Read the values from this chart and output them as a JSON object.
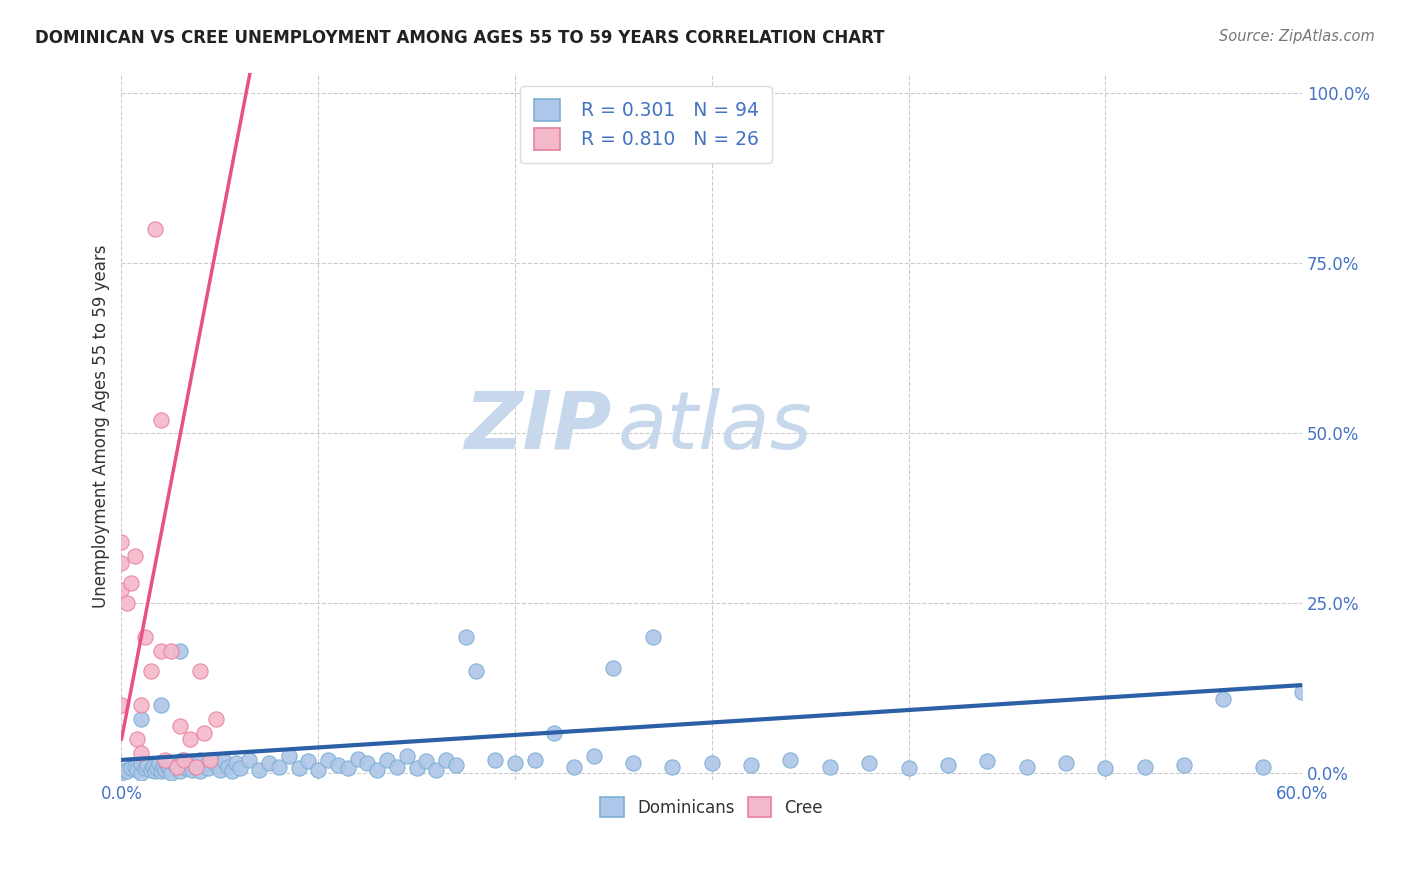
{
  "title": "DOMINICAN VS CREE UNEMPLOYMENT AMONG AGES 55 TO 59 YEARS CORRELATION CHART",
  "source": "Source: ZipAtlas.com",
  "ylabel": "Unemployment Among Ages 55 to 59 years",
  "ytick_labels": [
    "0.0%",
    "25.0%",
    "50.0%",
    "75.0%",
    "100.0%"
  ],
  "ytick_values": [
    0.0,
    0.25,
    0.5,
    0.75,
    1.0
  ],
  "xlim": [
    0.0,
    0.6
  ],
  "ylim": [
    -0.01,
    1.03
  ],
  "dominican_color": "#aec6e8",
  "dominican_edge_color": "#7bafd4",
  "cree_color": "#f4b8cb",
  "cree_edge_color": "#e8829e",
  "trend_dominican_color": "#2b5fa6",
  "trend_cree_color": "#e8508a",
  "legend_r_dominican": "R = 0.301",
  "legend_n_dominican": "N = 94",
  "legend_r_cree": "R = 0.810",
  "legend_n_cree": "N = 26",
  "watermark_zip": "ZIP",
  "watermark_atlas": "atlas",
  "watermark_color": "#c8d8ec",
  "dom_x": [
    0.0,
    0.002,
    0.003,
    0.005,
    0.007,
    0.008,
    0.01,
    0.01,
    0.012,
    0.013,
    0.015,
    0.016,
    0.017,
    0.018,
    0.019,
    0.02,
    0.021,
    0.022,
    0.023,
    0.024,
    0.025,
    0.026,
    0.028,
    0.03,
    0.031,
    0.033,
    0.035,
    0.036,
    0.038,
    0.04,
    0.042,
    0.044,
    0.046,
    0.048,
    0.05,
    0.052,
    0.054,
    0.056,
    0.058,
    0.06,
    0.065,
    0.07,
    0.075,
    0.08,
    0.085,
    0.09,
    0.095,
    0.1,
    0.105,
    0.11,
    0.115,
    0.12,
    0.125,
    0.13,
    0.135,
    0.14,
    0.145,
    0.15,
    0.155,
    0.16,
    0.165,
    0.17,
    0.175,
    0.18,
    0.19,
    0.2,
    0.21,
    0.22,
    0.23,
    0.24,
    0.25,
    0.26,
    0.27,
    0.28,
    0.3,
    0.32,
    0.34,
    0.36,
    0.38,
    0.4,
    0.42,
    0.44,
    0.46,
    0.48,
    0.5,
    0.52,
    0.54,
    0.56,
    0.58,
    0.6,
    0.01,
    0.02,
    0.03,
    0.04
  ],
  "dom_y": [
    0.0,
    0.005,
    0.003,
    0.008,
    0.01,
    0.005,
    0.0,
    0.015,
    0.008,
    0.012,
    0.005,
    0.01,
    0.003,
    0.008,
    0.015,
    0.003,
    0.01,
    0.005,
    0.012,
    0.008,
    0.0,
    0.015,
    0.01,
    0.003,
    0.02,
    0.008,
    0.015,
    0.005,
    0.01,
    0.003,
    0.015,
    0.008,
    0.02,
    0.012,
    0.005,
    0.018,
    0.01,
    0.003,
    0.015,
    0.008,
    0.02,
    0.005,
    0.015,
    0.01,
    0.025,
    0.008,
    0.018,
    0.005,
    0.02,
    0.012,
    0.008,
    0.022,
    0.015,
    0.005,
    0.02,
    0.01,
    0.025,
    0.008,
    0.018,
    0.005,
    0.02,
    0.012,
    0.2,
    0.15,
    0.02,
    0.015,
    0.02,
    0.06,
    0.01,
    0.025,
    0.155,
    0.015,
    0.2,
    0.01,
    0.015,
    0.012,
    0.02,
    0.01,
    0.015,
    0.008,
    0.012,
    0.018,
    0.01,
    0.015,
    0.008,
    0.01,
    0.012,
    0.11,
    0.01,
    0.12,
    0.08,
    0.1,
    0.18,
    0.02
  ],
  "cree_x": [
    0.0,
    0.0,
    0.0,
    0.0,
    0.003,
    0.005,
    0.007,
    0.008,
    0.01,
    0.01,
    0.012,
    0.015,
    0.017,
    0.02,
    0.02,
    0.022,
    0.025,
    0.028,
    0.03,
    0.032,
    0.035,
    0.038,
    0.04,
    0.042,
    0.045,
    0.048
  ],
  "cree_y": [
    0.1,
    0.27,
    0.31,
    0.34,
    0.25,
    0.28,
    0.32,
    0.05,
    0.03,
    0.1,
    0.2,
    0.15,
    0.8,
    0.18,
    0.52,
    0.02,
    0.18,
    0.01,
    0.07,
    0.02,
    0.05,
    0.01,
    0.15,
    0.06,
    0.02,
    0.08
  ]
}
